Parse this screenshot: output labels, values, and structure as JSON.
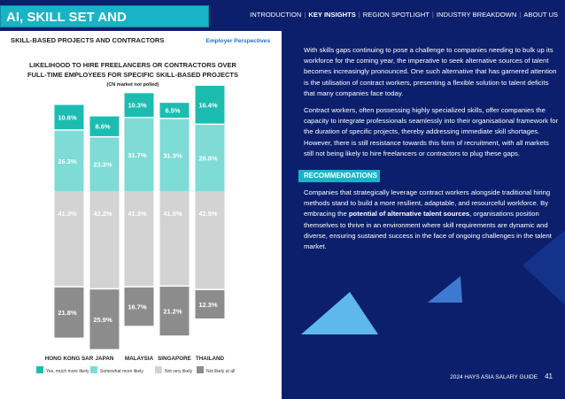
{
  "header": {
    "title": "AI, SKILL SET AND DEVELOPMENT",
    "nav": [
      "INTRODUCTION",
      "KEY INSIGHTS",
      "REGION SPOTLIGHT",
      "INDUSTRY BREAKDOWN",
      "ABOUT US"
    ],
    "active": 1
  },
  "section": {
    "title": "SKILL-BASED PROJECTS AND CONTRACTORS",
    "tag": "Employer Perspectives"
  },
  "chart_data": {
    "type": "bar",
    "title": [
      "LIKELIHOOD TO HIRE FREELANCERS OR CONTRACTORS OVER",
      "FULL-TIME EMPLOYEES FOR SPECIFIC SKILL-BASED PROJECTS"
    ],
    "subtitle": "(CN market not polled)",
    "categories": [
      "HONG KONG SAR",
      "JAPAN",
      "MALAYSIA",
      "SINGAPORE",
      "THAILAND"
    ],
    "series": [
      {
        "name": "Yes, much more likely",
        "color": "#1cbdb0",
        "values": [
          10.6,
          8.6,
          10.3,
          6.5,
          16.4
        ],
        "value_labels": [
          "10.6%",
          "8.6%",
          "10.3%",
          "6.5%",
          "16.4%"
        ]
      },
      {
        "name": "Somewhat more likely",
        "color": "#7edbd6",
        "values": [
          26.3,
          23.3,
          31.7,
          31.3,
          28.8
        ],
        "value_labels": [
          "26.3%",
          "23.3%",
          "31.7%",
          "31.3%",
          "28.8%"
        ]
      },
      {
        "name": "Not very likely",
        "color": "#d3d3d3",
        "values": [
          41.3,
          42.2,
          41.3,
          41.0,
          42.5
        ],
        "value_labels": [
          "41.3%",
          "42.2%",
          "41.3%",
          "41.0%",
          "42.5%"
        ]
      },
      {
        "name": "Not likely at all",
        "color": "#8c8c8c",
        "values": [
          21.8,
          25.9,
          16.7,
          21.2,
          12.3
        ],
        "value_labels": [
          "21.8%",
          "25.9%",
          "16.7%",
          "21.2%",
          "12.3%"
        ]
      }
    ]
  },
  "paragraphs": [
    "With skills gaps continuing to pose a challenge to companies needing to bulk up its workforce for the coming year, the imperative to seek alternative sources of talent becomes increasingly pronounced. One such alternative that has garnered attention is the utilisation of contract workers, presenting a flexible solution to talent deficits that many companies face today.",
    "Contract workers, often possessing highly specialized skills, offer companies the capacity to integrate professionals seamlessly into their organisational framework for the duration of specific projects, thereby addressing immediate skill shortages.",
    "However, there is still resistance towards this form of recruitment, with all markets still not being likely to hire freelancers or contractors to plug these gaps."
  ],
  "recommendations": {
    "title": "RECOMMENDATIONS",
    "text": [
      "Companies that strategically leverage contract workers alongside traditional hiring methods stand to build a more resilient, adaptable, and resourceful workforce. By embracing the ",
      "potential of alternative talent sources",
      ", organisations position themselves to thrive in an environment where skill requirements are dynamic and diverse, ensuring sustained success in the face of ongoing challenges in the talent market."
    ]
  },
  "footer": {
    "guide": "2024 HAYS ASIA SALARY GUIDE",
    "page": "41"
  }
}
